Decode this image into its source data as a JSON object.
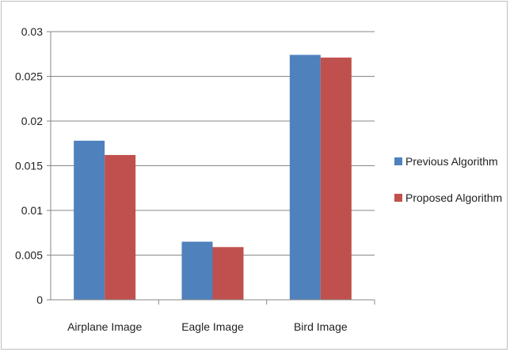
{
  "chart_data": {
    "type": "bar",
    "categories": [
      "Airplane Image",
      "Eagle Image",
      "Bird Image"
    ],
    "series": [
      {
        "name": "Previous Algorithm",
        "color": "#4f81bd",
        "values": [
          0.0178,
          0.0065,
          0.0274
        ]
      },
      {
        "name": "Proposed Algorithm",
        "color": "#c0504d",
        "values": [
          0.0162,
          0.0059,
          0.0271
        ]
      }
    ],
    "y_ticks": [
      "0",
      "0.005",
      "0.01",
      "0.015",
      "0.02",
      "0.025",
      "0.03"
    ],
    "ylim": [
      0,
      0.03
    ],
    "grid": true,
    "legend_position": "right"
  }
}
